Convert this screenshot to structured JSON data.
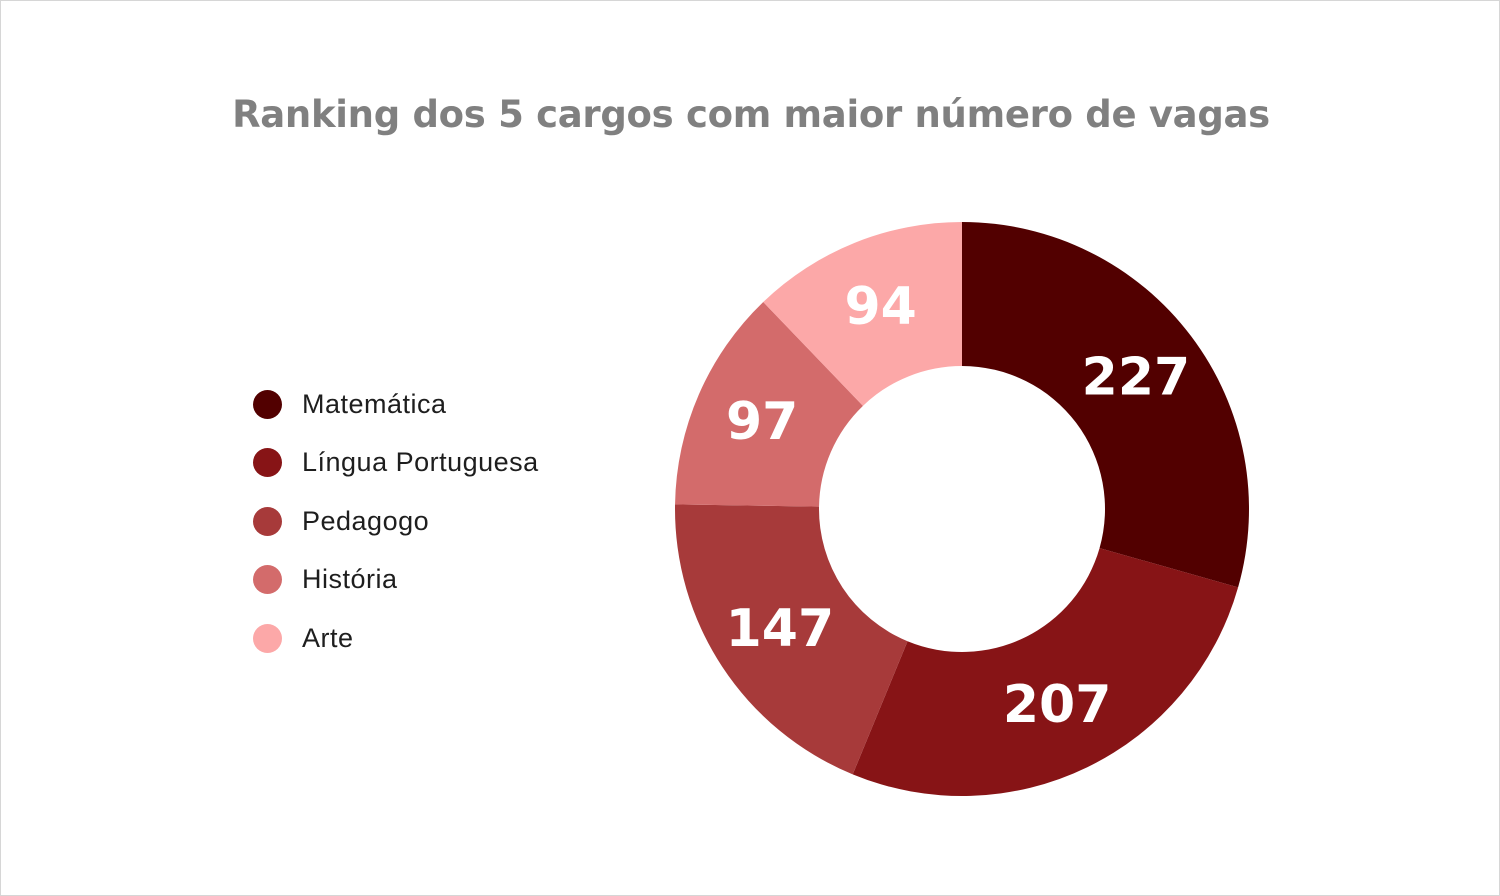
{
  "chart_data": {
    "type": "pie",
    "title": "Ranking dos 5 cargos com maior número de vagas",
    "categories": [
      "Matemática",
      "Língua Portuguesa",
      "Pedagogo",
      "História",
      "Arte"
    ],
    "values": [
      227,
      207,
      147,
      97,
      94
    ],
    "colors": [
      "#520000",
      "#871416",
      "#a73a3a",
      "#d36b6b",
      "#fca8a8"
    ],
    "donut": true,
    "legend_position": "left"
  }
}
